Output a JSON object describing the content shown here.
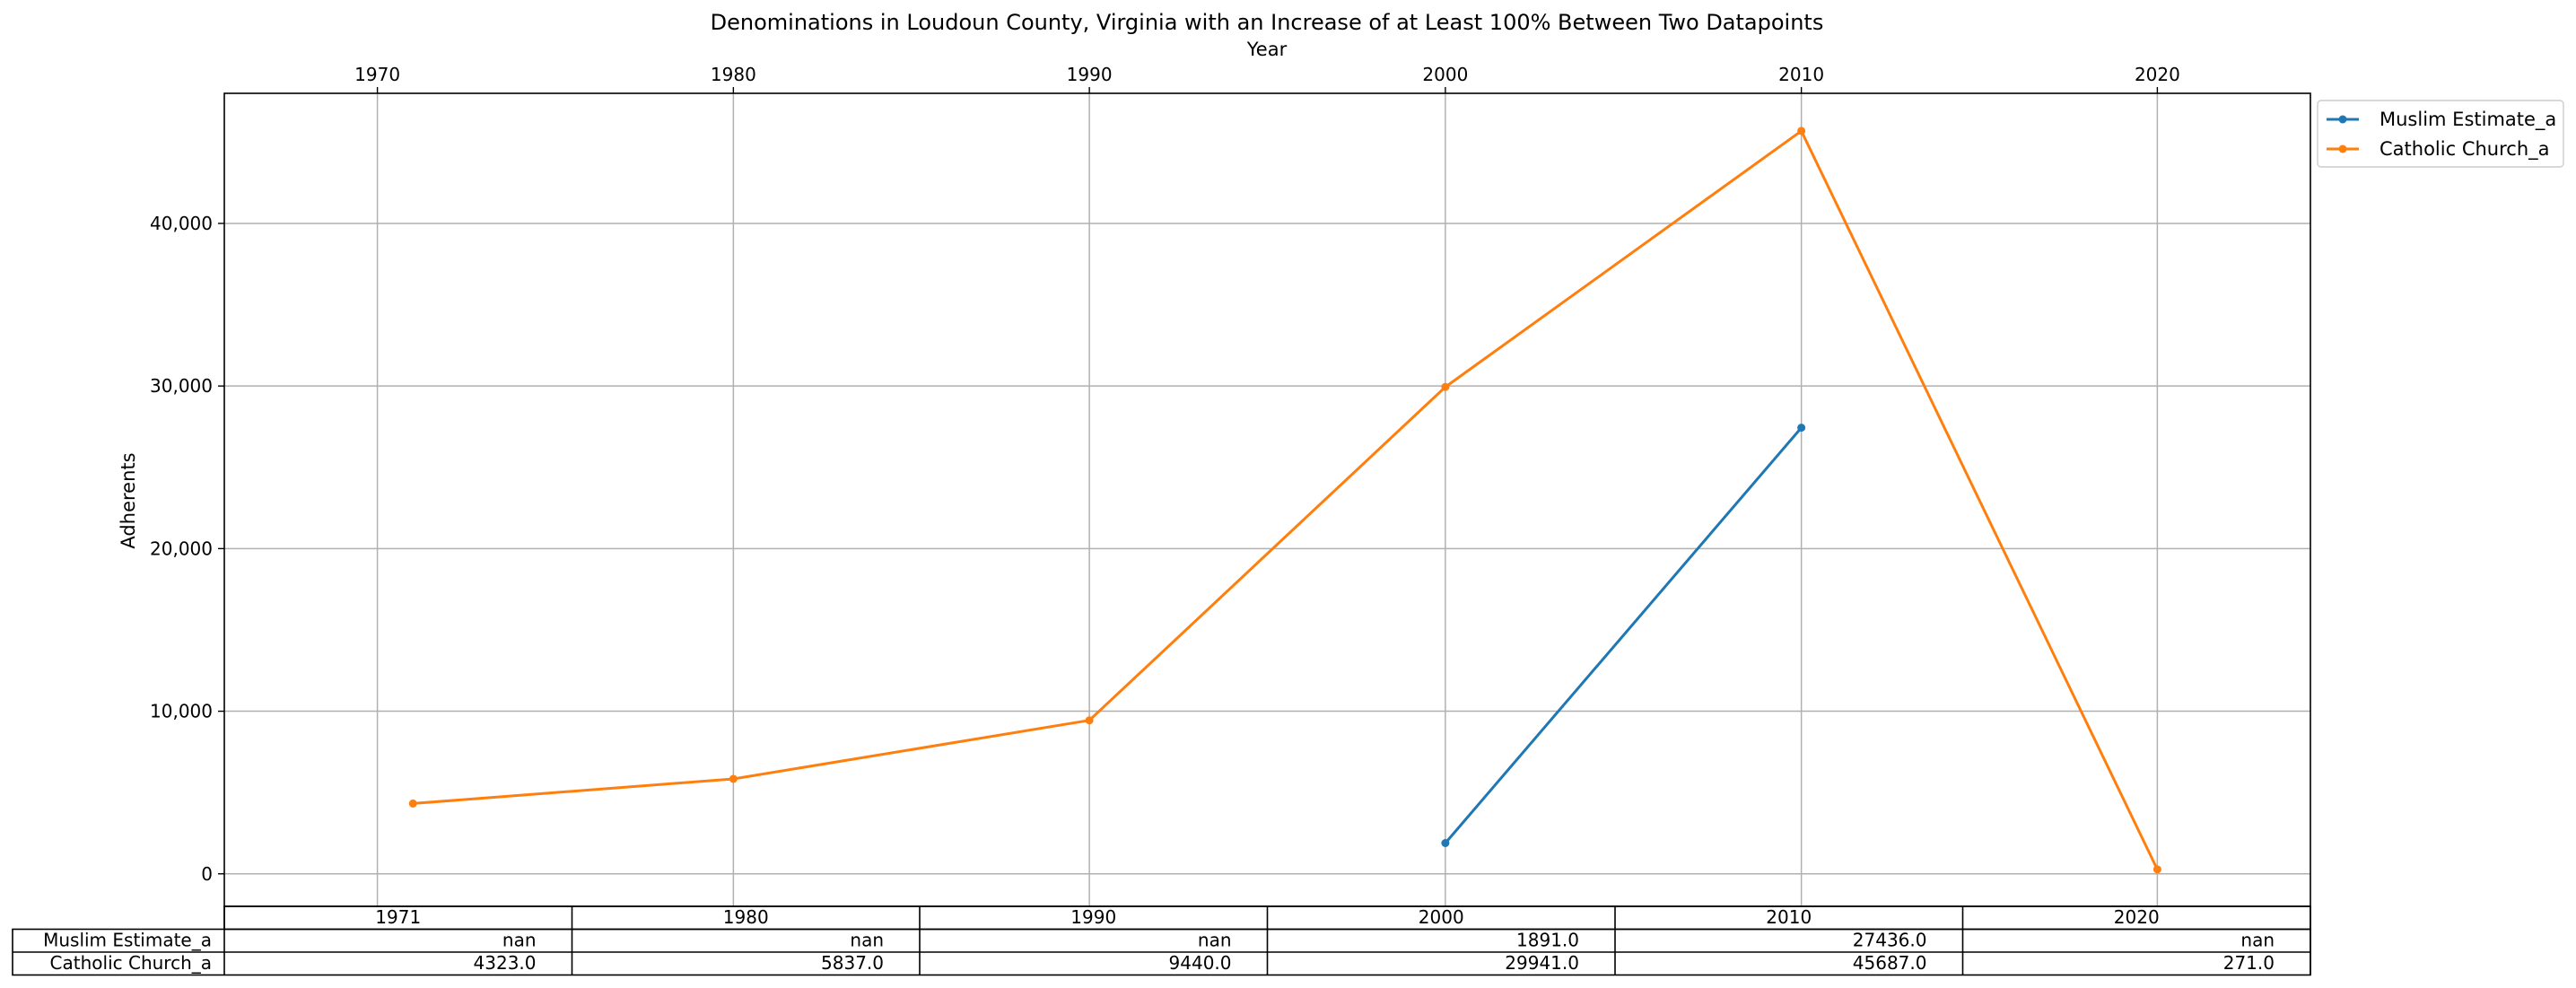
{
  "chart_data": {
    "type": "line",
    "title": "Denominations in Loudoun County, Virginia with an Increase of at Least 100% Between Two Datapoints",
    "xlabel": "Year",
    "ylabel": "Adherents",
    "xlim": [
      1965.7,
      2024.3
    ],
    "ylim": [
      -2000,
      48000
    ],
    "x_ticks": [
      1970,
      1980,
      1990,
      2000,
      2010,
      2020
    ],
    "x_tick_labels": [
      "1970",
      "1980",
      "1990",
      "2000",
      "2010",
      "2020"
    ],
    "y_ticks": [
      0,
      10000,
      20000,
      30000,
      40000
    ],
    "y_tick_labels": [
      "0",
      "10,000",
      "20,000",
      "30,000",
      "40,000"
    ],
    "x_axis_position": "top",
    "grid": true,
    "legend_position": "outside-top-right",
    "series": [
      {
        "name": "Muslim Estimate_a",
        "color": "#1f77b4",
        "x": [
          2000,
          2010
        ],
        "y": [
          1891,
          27436
        ]
      },
      {
        "name": "Catholic Church_a",
        "color": "#ff7f0e",
        "x": [
          1971,
          1980,
          1990,
          2000,
          2010,
          2020
        ],
        "y": [
          4323,
          5837,
          9440,
          29941,
          45687,
          271
        ]
      }
    ]
  },
  "table": {
    "columns": [
      "1971",
      "1980",
      "1990",
      "2000",
      "2010",
      "2020"
    ],
    "rows": [
      {
        "label": "Muslim Estimate_a",
        "cells": [
          "nan",
          "nan",
          "nan",
          "1891.0",
          "27436.0",
          "nan"
        ]
      },
      {
        "label": "Catholic Church_a",
        "cells": [
          "4323.0",
          "5837.0",
          "9440.0",
          "29941.0",
          "45687.0",
          "271.0"
        ]
      }
    ]
  }
}
